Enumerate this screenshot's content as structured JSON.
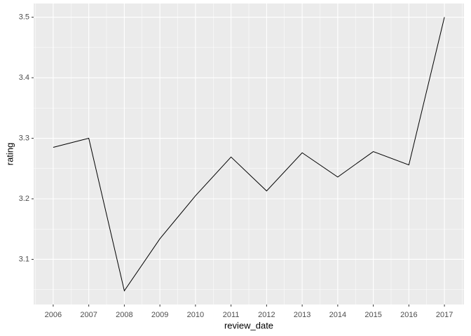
{
  "chart_data": {
    "type": "line",
    "x_label": "review_date",
    "y_label": "rating",
    "x": [
      2006,
      2007,
      2008,
      2009,
      2010,
      2011,
      2012,
      2013,
      2014,
      2015,
      2016,
      2017
    ],
    "series": [
      {
        "color": "#000000",
        "values": [
          3.285,
          3.3,
          3.048,
          3.134,
          3.205,
          3.269,
          3.213,
          3.276,
          3.236,
          3.278,
          3.256,
          3.5
        ]
      }
    ],
    "xlim": [
      2005.45,
      2017.55
    ],
    "xticks": [
      2006,
      2007,
      2008,
      2009,
      2010,
      2011,
      2012,
      2013,
      2014,
      2015,
      2016,
      2017
    ],
    "ylim": [
      3.0254,
      3.5226
    ],
    "yticks": [
      3.1,
      3.2,
      3.3,
      3.4,
      3.5
    ],
    "grid": true
  }
}
